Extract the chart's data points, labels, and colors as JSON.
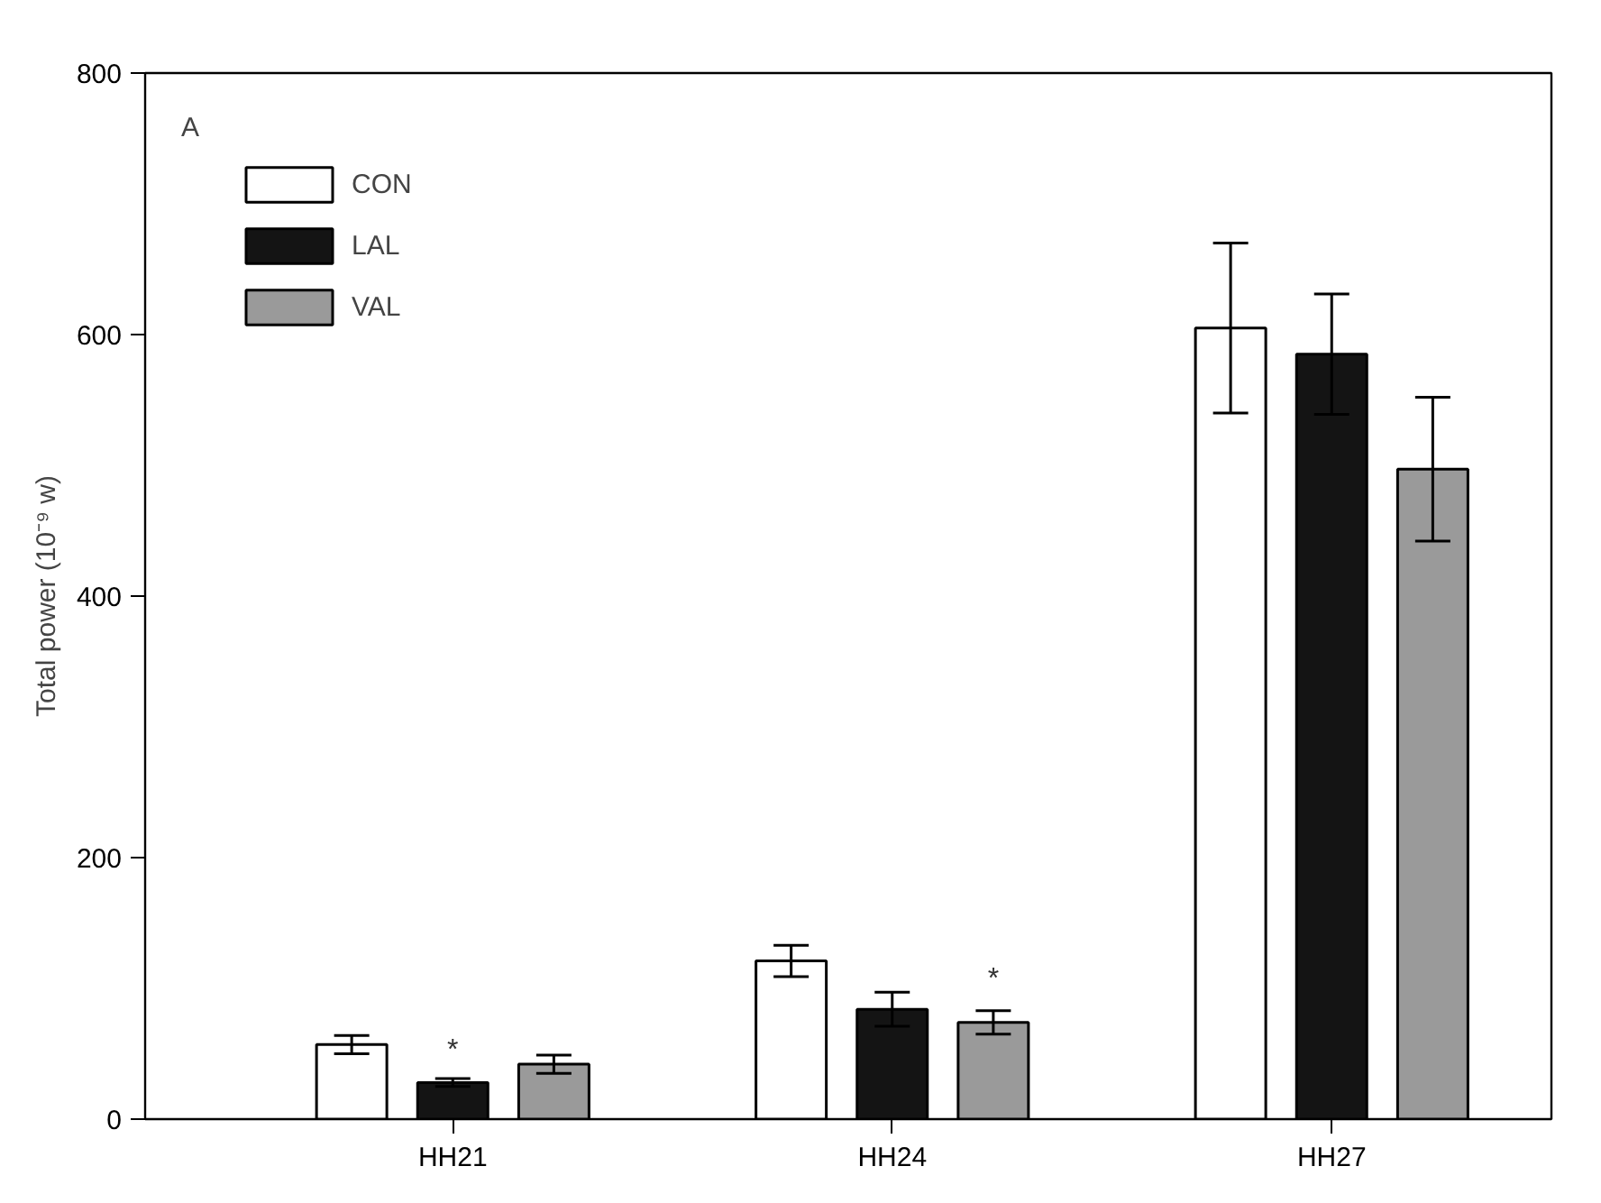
{
  "chart_data": {
    "type": "bar",
    "ylabel": "Total power (10⁻⁹ w)",
    "categories": [
      "HH21",
      "HH24",
      "HH27"
    ],
    "series": [
      {
        "name": "CON",
        "color": "#ffffff",
        "values": [
          57,
          121,
          605
        ],
        "errors": [
          7,
          12,
          65
        ]
      },
      {
        "name": "LAL",
        "color": "#141414",
        "values": [
          28,
          84,
          585
        ],
        "errors": [
          3,
          13,
          46
        ]
      },
      {
        "name": "VAL",
        "color": "#9a9a9a",
        "values": [
          42,
          74,
          497
        ],
        "errors": [
          7,
          9,
          55
        ]
      }
    ],
    "ylim": [
      0,
      800
    ],
    "yticks": [
      0,
      200,
      400,
      600,
      800
    ],
    "grid": false,
    "legend": "top left",
    "annotations": [
      "A",
      "*",
      "*"
    ]
  }
}
